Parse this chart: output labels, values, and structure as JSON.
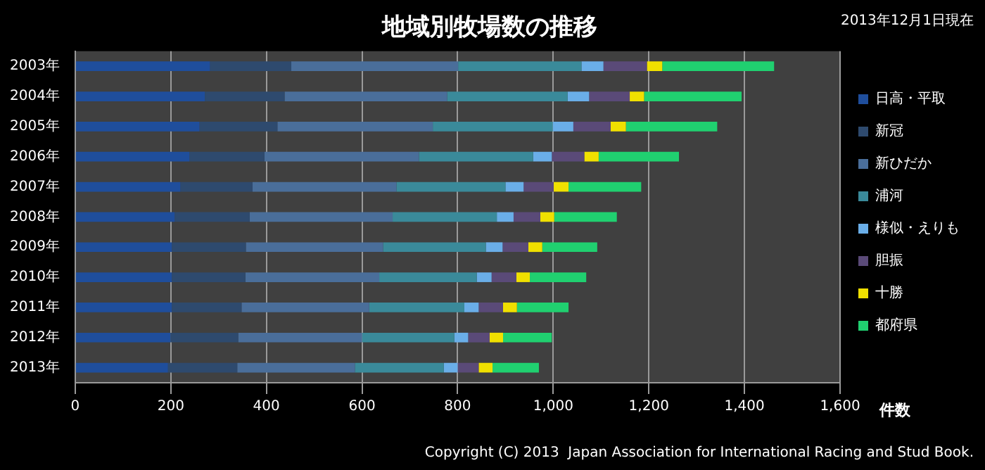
{
  "chart_data": {
    "type": "bar",
    "orientation": "horizontal",
    "stacked": true,
    "title": "地域別牧場数の推移",
    "subtitle": "2013年12月1日現在",
    "xlabel": "件数",
    "annotations": [
      "Copyright (C) 2013  Japan Association for International Racing and Stud Book."
    ],
    "categories": [
      "2003年",
      "2004年",
      "2005年",
      "2006年",
      "2007年",
      "2008年",
      "2009年",
      "2010年",
      "2011年",
      "2012年",
      "2013年"
    ],
    "series": [
      {
        "name": "日高・平取",
        "color": "#1f4e9c",
        "values": [
          282,
          271,
          260,
          239,
          220,
          208,
          202,
          202,
          202,
          199,
          194
        ]
      },
      {
        "name": "新冠",
        "color": "#2e4a6e",
        "values": [
          170,
          167,
          163,
          157,
          151,
          157,
          155,
          154,
          146,
          142,
          145
        ]
      },
      {
        "name": "新ひだか",
        "color": "#4a6e9a",
        "values": [
          349,
          340,
          325,
          323,
          301,
          299,
          287,
          280,
          267,
          259,
          246
        ]
      },
      {
        "name": "浦河",
        "color": "#3a8a9a",
        "values": [
          258,
          252,
          251,
          239,
          228,
          218,
          215,
          204,
          199,
          193,
          186
        ]
      },
      {
        "name": "様似・えりも",
        "color": "#6aaee8",
        "values": [
          46,
          45,
          43,
          39,
          38,
          35,
          35,
          31,
          30,
          29,
          29
        ]
      },
      {
        "name": "胆振",
        "color": "#5a4a78",
        "values": [
          91,
          85,
          78,
          68,
          63,
          56,
          54,
          52,
          51,
          45,
          44
        ]
      },
      {
        "name": "十勝",
        "color": "#f0e000",
        "values": [
          32,
          30,
          32,
          30,
          31,
          29,
          29,
          28,
          29,
          28,
          29
        ]
      },
      {
        "name": "都府県",
        "color": "#20d070",
        "values": [
          234,
          204,
          191,
          168,
          152,
          131,
          115,
          118,
          108,
          102,
          97
        ]
      }
    ],
    "xlim": [
      0,
      1600
    ],
    "xticks": [
      0,
      200,
      400,
      600,
      800,
      {
        "value": 1000,
        "label": "1,000"
      },
      {
        "value": 1200,
        "label": "1,200"
      },
      {
        "value": 1400,
        "label": "1,400"
      },
      {
        "value": 1600,
        "label": "1,600"
      }
    ],
    "grid": "x",
    "legend": "right"
  }
}
